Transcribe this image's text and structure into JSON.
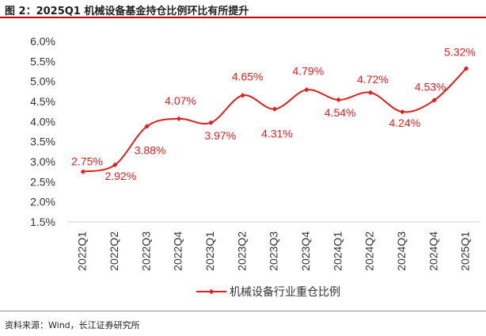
{
  "header": {
    "title": "图 2：2025Q1 机械设备基金持仓比例环比有所提升"
  },
  "footer": {
    "source": "资料来源：Wind，长江证券研究所"
  },
  "colors": {
    "series": "#e02020",
    "title_rule": "#c00000"
  },
  "chart_data": {
    "type": "line",
    "categories": [
      "2022Q1",
      "2022Q2",
      "2022Q3",
      "2022Q4",
      "2023Q1",
      "2023Q2",
      "2023Q3",
      "2023Q4",
      "2024Q1",
      "2024Q2",
      "2024Q3",
      "2024Q4",
      "2025Q1"
    ],
    "series": [
      {
        "name": "机械设备行业重仓比例",
        "values": [
          2.75,
          2.92,
          3.88,
          4.07,
          3.97,
          4.65,
          4.31,
          4.79,
          4.54,
          4.72,
          4.24,
          4.53,
          5.32
        ],
        "labels": [
          "2.75%",
          "2.92%",
          "3.88%",
          "4.07%",
          "3.97%",
          "4.65%",
          "4.31%",
          "4.79%",
          "4.54%",
          "4.72%",
          "4.24%",
          "4.53%",
          "5.32%"
        ]
      }
    ],
    "yticks": [
      "1.5%",
      "2.0%",
      "2.5%",
      "3.0%",
      "3.5%",
      "4.0%",
      "4.5%",
      "5.0%",
      "5.5%",
      "6.0%"
    ],
    "ylim": [
      1.5,
      6.0
    ],
    "grid": false,
    "legend": "bottom",
    "smooth": true
  }
}
